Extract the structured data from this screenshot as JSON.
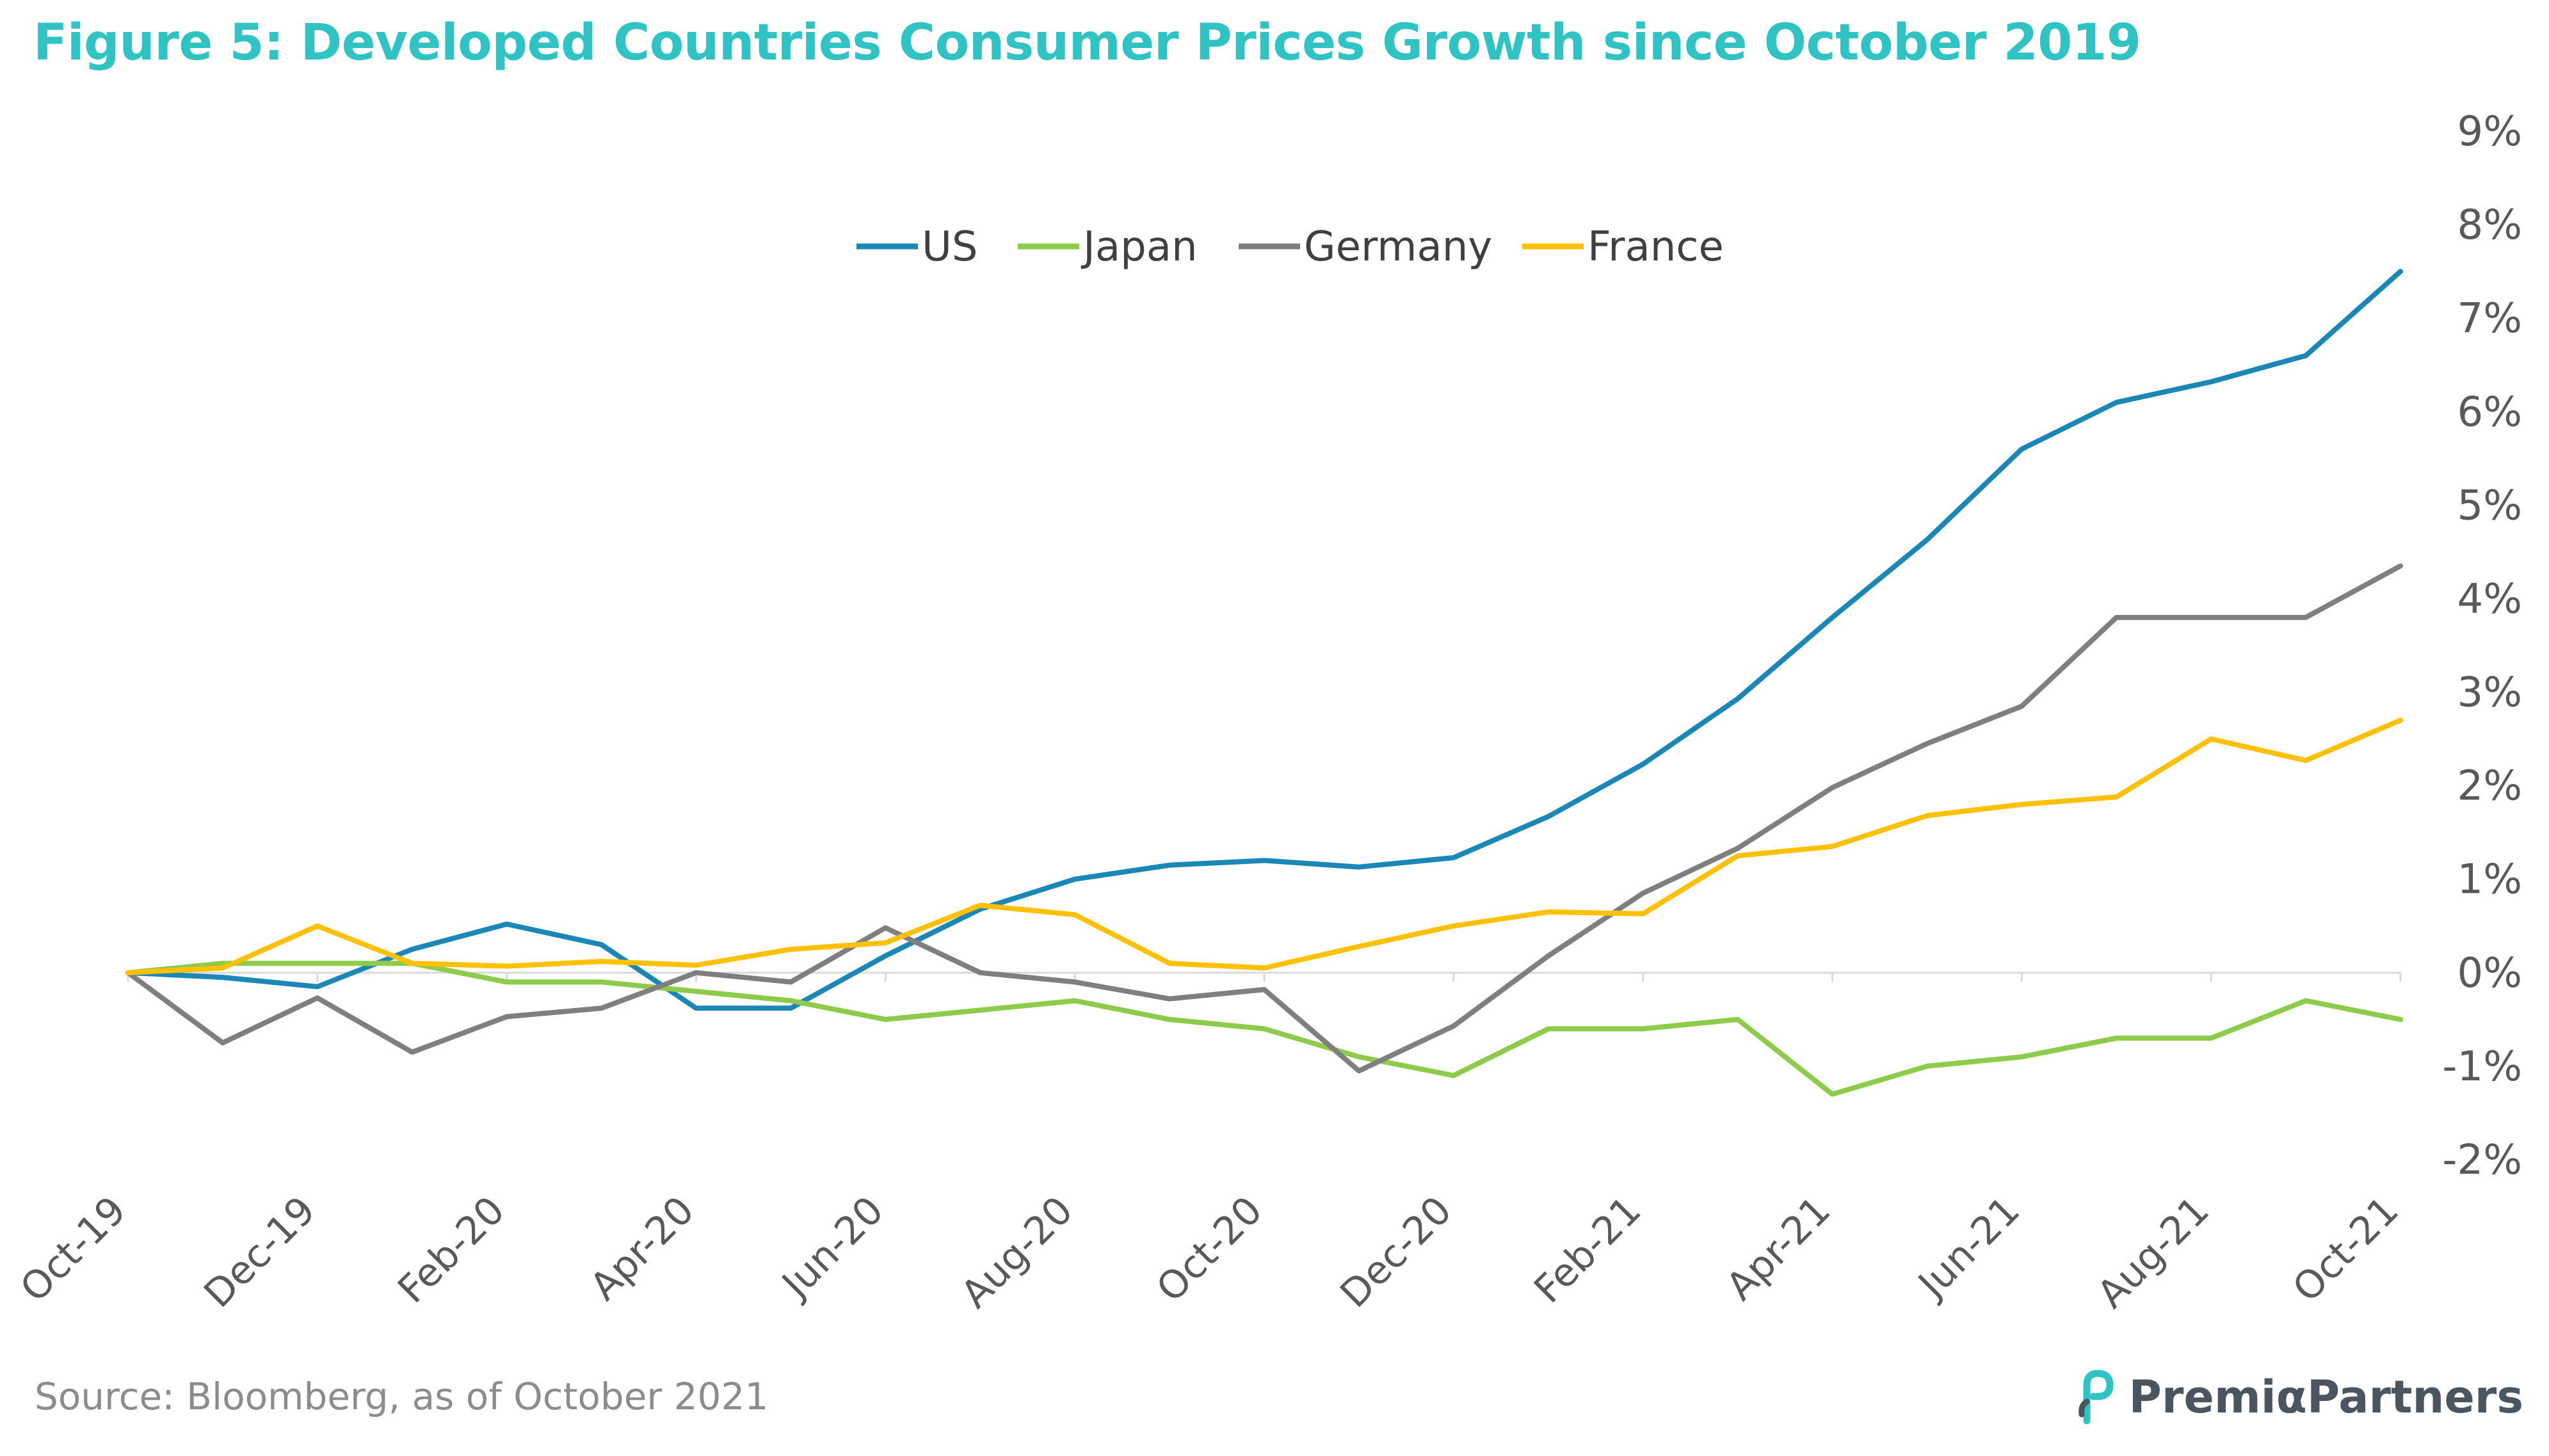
{
  "title": "Figure 5: Developed Countries Consumer Prices Growth since October 2019",
  "source": "Source: Bloomberg, as of October 2021",
  "brand": {
    "name": "PremiαPartners",
    "logo_icon": "premia-logo-icon",
    "color": "#4b5560",
    "accent": "#2fc3c3"
  },
  "chart_data": {
    "type": "line",
    "x": [
      "Oct-19",
      "Nov-19",
      "Dec-19",
      "Jan-20",
      "Feb-20",
      "Mar-20",
      "Apr-20",
      "May-20",
      "Jun-20",
      "Jul-20",
      "Aug-20",
      "Sep-20",
      "Oct-20",
      "Nov-20",
      "Dec-20",
      "Jan-21",
      "Feb-21",
      "Mar-21",
      "Apr-21",
      "May-21",
      "Jun-21",
      "Jul-21",
      "Aug-21",
      "Sep-21",
      "Oct-21"
    ],
    "x_tick_labels": [
      "Oct-19",
      "Dec-19",
      "Feb-20",
      "Apr-20",
      "Jun-20",
      "Aug-20",
      "Oct-20",
      "Dec-20",
      "Feb-21",
      "Apr-21",
      "Jun-21",
      "Aug-21",
      "Oct-21"
    ],
    "ylim": [
      -2,
      9
    ],
    "y_ticks": [
      -2,
      -1,
      0,
      1,
      2,
      3,
      4,
      5,
      6,
      7,
      8,
      9
    ],
    "y_tick_format": "%",
    "y_axis_position": "right",
    "grid": false,
    "legend_position": "top-center",
    "series": [
      {
        "name": "US",
        "color": "#1a87b6",
        "values": [
          0,
          -0.05,
          -0.15,
          0.25,
          0.52,
          0.3,
          -0.38,
          -0.38,
          0.18,
          0.68,
          1.0,
          1.15,
          1.2,
          1.13,
          1.23,
          1.67,
          2.23,
          2.93,
          3.8,
          4.63,
          5.6,
          6.1,
          6.32,
          6.6,
          7.5
        ]
      },
      {
        "name": "Japan",
        "color": "#8dcc4a",
        "values": [
          0,
          0.1,
          0.1,
          0.1,
          -0.1,
          -0.1,
          -0.2,
          -0.3,
          -0.5,
          -0.4,
          -0.3,
          -0.5,
          -0.6,
          -0.9,
          -1.1,
          -0.6,
          -0.6,
          -0.5,
          -1.3,
          -1.0,
          -0.9,
          -0.7,
          -0.7,
          -0.3,
          -0.5
        ]
      },
      {
        "name": "Germany",
        "color": "#7f7f7f",
        "values": [
          0,
          -0.75,
          -0.27,
          -0.85,
          -0.47,
          -0.38,
          0.0,
          -0.1,
          0.48,
          0.0,
          -0.1,
          -0.28,
          -0.18,
          -1.05,
          -0.57,
          0.18,
          0.85,
          1.33,
          1.98,
          2.45,
          2.85,
          3.8,
          3.8,
          3.8,
          4.35
        ]
      },
      {
        "name": "France",
        "color": "#fec107",
        "values": [
          0,
          0.05,
          0.5,
          0.1,
          0.07,
          0.12,
          0.08,
          0.25,
          0.32,
          0.72,
          0.62,
          0.1,
          0.05,
          0.28,
          0.5,
          0.65,
          0.63,
          1.25,
          1.35,
          1.68,
          1.8,
          1.88,
          2.5,
          2.27,
          2.7
        ]
      }
    ]
  }
}
